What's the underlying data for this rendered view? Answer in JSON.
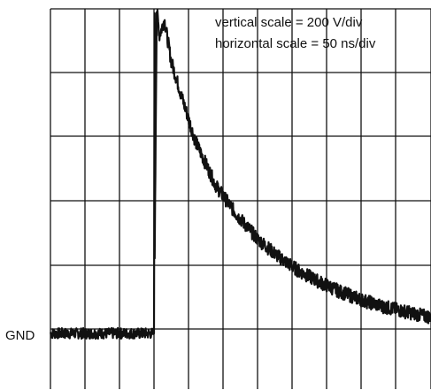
{
  "chart_data": {
    "type": "line",
    "annotations": {
      "vertical_scale": "vertical scale = 200 V/div",
      "horizontal_scale": "horizontal scale = 50 ns/div",
      "ground_marker": "GND"
    },
    "units": {
      "volts_per_div": 200,
      "ns_per_div": 50
    },
    "grid": true,
    "xlim": [
      0,
      600
    ],
    "ylim": [
      -100,
      1100
    ],
    "x_ns": [
      0,
      100,
      150,
      154,
      158,
      165,
      175,
      190,
      210,
      240,
      270,
      300,
      330,
      360,
      390,
      420,
      450,
      480,
      510,
      540,
      570,
      600
    ],
    "y_v": [
      0,
      0,
      0,
      1010,
      930,
      980,
      850,
      740,
      600,
      460,
      370,
      295,
      240,
      195,
      160,
      130,
      105,
      85,
      70,
      55,
      45,
      40
    ],
    "noise_v": 12,
    "colors": {
      "trace": "#111111",
      "grid": "#111111",
      "background": "#ffffff"
    }
  }
}
